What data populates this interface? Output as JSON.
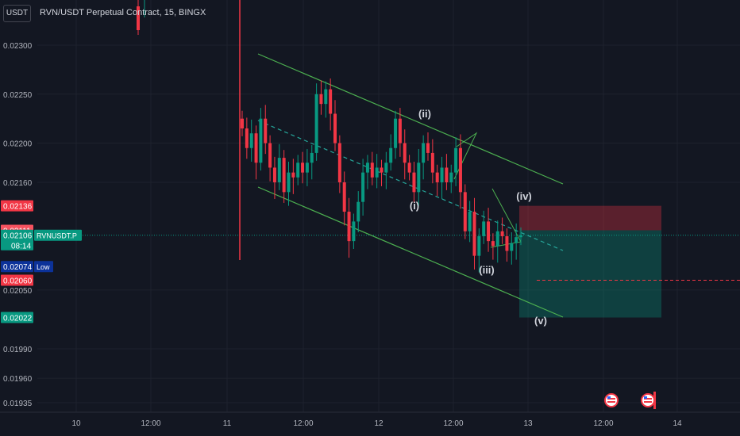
{
  "header": {
    "currency": "USDT",
    "title": "RVN/USDT Perpetual Contract, 15, BINGX"
  },
  "chart_data": {
    "type": "candlestick",
    "symbol": "RVN/USDT Perpetual Contract",
    "interval": "15",
    "exchange": "BINGX",
    "ylim": [
      0.01925,
      0.0233
    ],
    "y_ticks": [
      "0.02300",
      "0.02250",
      "0.02200",
      "0.02160",
      "0.02136",
      "0.02111",
      "0.02106",
      "0.02074",
      "0.02060",
      "0.02050",
      "0.02022",
      "0.01990",
      "0.01960",
      "0.01935"
    ],
    "x_ticks": [
      "10",
      "12:00",
      "11",
      "12:00",
      "12",
      "12:00",
      "13",
      "12:00",
      "14"
    ],
    "price_labels": [
      {
        "id": "p1",
        "value": "0.02136",
        "color": "#f23645"
      },
      {
        "id": "p2",
        "value": "0.02111",
        "color": "#f7525f"
      },
      {
        "id": "p3",
        "value": "0.02106",
        "color": "#089981",
        "sub": "08:14",
        "tag": "RVNUSDT.P"
      },
      {
        "id": "p4",
        "value": "0.02074",
        "color": "#0c3299",
        "tag": "Low"
      },
      {
        "id": "p5",
        "value": "0.02060",
        "color": "#f23645"
      },
      {
        "id": "p6",
        "value": "0.02022",
        "color": "#089981"
      }
    ],
    "wave_labels": [
      "(i)",
      "(ii)",
      "(iii)",
      "(iv)",
      "(v)"
    ],
    "current_price": 0.02106,
    "position": {
      "entry": 0.02111,
      "stop": 0.02136,
      "target": 0.02022,
      "marker_price": 0.0206
    },
    "candles_close": [
      0.02215,
      0.02195,
      0.0221,
      0.0218,
      0.02225,
      0.022,
      0.02175,
      0.0216,
      0.02185,
      0.0215,
      0.0217,
      0.02165,
      0.0218,
      0.0217,
      0.0218,
      0.0219,
      0.0225,
      0.0224,
      0.02255,
      0.0223,
      0.022,
      0.0216,
      0.0213,
      0.021,
      0.0212,
      0.0214,
      0.0217,
      0.0218,
      0.02165,
      0.02175,
      0.0217,
      0.0218,
      0.02195,
      0.02225,
      0.022,
      0.0218,
      0.0217,
      0.0215,
      0.0218,
      0.022,
      0.0219,
      0.0217,
      0.0216,
      0.02175,
      0.0216,
      0.0217,
      0.02195,
      0.0215,
      0.0211,
      0.0213,
      0.02085,
      0.02105,
      0.0212,
      0.021,
      0.02095,
      0.0211,
      0.02105,
      0.0209,
      0.02098,
      0.02104,
      0.02106
    ]
  }
}
